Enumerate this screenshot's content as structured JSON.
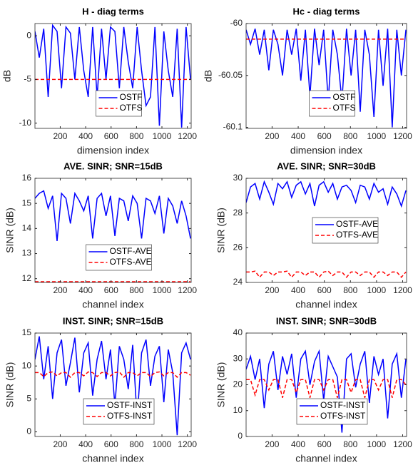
{
  "chart_data": [
    {
      "type": "line",
      "title": "H - diag terms",
      "xlabel": "dimension index",
      "ylabel": "dB",
      "x": [
        1,
        35,
        70,
        105,
        140,
        175,
        210,
        245,
        280,
        315,
        350,
        385,
        420,
        455,
        490,
        525,
        560,
        595,
        630,
        665,
        700,
        735,
        770,
        805,
        840,
        875,
        910,
        945,
        980,
        1015,
        1050,
        1085,
        1120,
        1155,
        1190,
        1225
      ],
      "xlim": [
        1,
        1230
      ],
      "xticks": [
        200,
        400,
        600,
        800,
        1000,
        1200
      ],
      "ylim": [
        -10.6,
        1.4
      ],
      "yticks": [
        -10,
        -5,
        0
      ],
      "legend": "south",
      "grid": false,
      "series": [
        {
          "name": "OSTF",
          "color": "#0000ff",
          "linestyle": "solid",
          "values": [
            0.5,
            -2.5,
            0.8,
            -7,
            1.2,
            0.5,
            -6,
            1,
            0.3,
            -5,
            1,
            -4,
            -7,
            1,
            -7,
            0.8,
            -5,
            1,
            0.5,
            -6,
            1,
            -3,
            -6,
            1,
            -4,
            -8,
            -7,
            1,
            -10.3,
            0.5,
            -4,
            -7,
            0.8,
            -10.5,
            1,
            -5
          ]
        },
        {
          "name": "OTFS",
          "color": "#ff0000",
          "linestyle": "dashed",
          "values": [
            -5,
            -5,
            -5,
            -5,
            -5,
            -5,
            -5,
            -5,
            -5,
            -5,
            -5,
            -5,
            -5,
            -5,
            -5,
            -5,
            -5,
            -5,
            -5,
            -5,
            -5,
            -5,
            -5,
            -5,
            -5,
            -5,
            -5,
            -5,
            -5,
            -5,
            -5,
            -5,
            -5,
            -5,
            -5,
            -5
          ]
        }
      ]
    },
    {
      "type": "line",
      "title": "Hc - diag terms",
      "xlabel": "dimension index",
      "ylabel": "dB",
      "x": [
        1,
        35,
        70,
        105,
        140,
        175,
        210,
        245,
        280,
        315,
        350,
        385,
        420,
        455,
        490,
        525,
        560,
        595,
        630,
        665,
        700,
        735,
        770,
        805,
        840,
        875,
        910,
        945,
        980,
        1015,
        1050,
        1085,
        1120,
        1155,
        1190,
        1225
      ],
      "xlim": [
        1,
        1230
      ],
      "xticks": [
        200,
        400,
        600,
        800,
        1000,
        1200
      ],
      "ylim": [
        -60.101,
        -60
      ],
      "yticks": [
        -60.1,
        -60.05,
        -60
      ],
      "legend": "south",
      "grid": false,
      "series": [
        {
          "name": "OSTF",
          "color": "#0000ff",
          "linestyle": "solid",
          "values": [
            -60.006,
            -60.02,
            -60.005,
            -60.03,
            -60.006,
            -60.045,
            -60.006,
            -60.02,
            -60.05,
            -60.006,
            -60.03,
            -60.005,
            -60.055,
            -60.006,
            -60.07,
            -60.005,
            -60.04,
            -60.006,
            -60.075,
            -60.006,
            -60.03,
            -60.075,
            -60.005,
            -60.05,
            -60.006,
            -60.085,
            -60.006,
            -60.03,
            -60.09,
            -60.006,
            -60.06,
            -60.005,
            -60.1,
            -60.006,
            -60.05,
            -60.006
          ]
        },
        {
          "name": "OTFS",
          "color": "#ff0000",
          "linestyle": "dashed",
          "values": [
            -60.015,
            -60.015,
            -60.015,
            -60.015,
            -60.015,
            -60.015,
            -60.015,
            -60.015,
            -60.015,
            -60.015,
            -60.015,
            -60.015,
            -60.015,
            -60.015,
            -60.015,
            -60.015,
            -60.015,
            -60.015,
            -60.015,
            -60.015,
            -60.015,
            -60.015,
            -60.015,
            -60.015,
            -60.015,
            -60.015,
            -60.015,
            -60.015,
            -60.015,
            -60.015,
            -60.015,
            -60.015,
            -60.015,
            -60.015,
            -60.015,
            -60.015
          ]
        }
      ]
    },
    {
      "type": "line",
      "title": "AVE. SINR; SNR=15dB",
      "xlabel": "channel index",
      "ylabel": "SINR (dB)",
      "x": [
        1,
        35,
        70,
        105,
        140,
        175,
        210,
        245,
        280,
        315,
        350,
        385,
        420,
        455,
        490,
        525,
        560,
        595,
        630,
        665,
        700,
        735,
        770,
        805,
        840,
        875,
        910,
        945,
        980,
        1015,
        1050,
        1085,
        1120,
        1155,
        1190,
        1225
      ],
      "xlim": [
        1,
        1230
      ],
      "xticks": [
        200,
        400,
        600,
        800,
        1000,
        1200
      ],
      "ylim": [
        11.85,
        16
      ],
      "yticks": [
        12,
        13,
        14,
        15,
        16
      ],
      "legend": "south",
      "grid": false,
      "series": [
        {
          "name": "OSTF-AVE",
          "color": "#0000ff",
          "linestyle": "solid",
          "values": [
            15.2,
            15.4,
            15.5,
            14.8,
            15.3,
            13.5,
            15.4,
            15.2,
            14.2,
            15.4,
            15.1,
            14.7,
            15.3,
            13.6,
            15.2,
            15.4,
            14.5,
            15.3,
            13.7,
            15.2,
            15.1,
            14.3,
            15.3,
            15,
            13.6,
            15.2,
            15.1,
            14.6,
            15.3,
            13.8,
            15.2,
            14.9,
            14.2,
            15.1,
            14.5,
            13.6
          ]
        },
        {
          "name": "OTFS-AVE",
          "color": "#ff0000",
          "linestyle": "dashed",
          "values": [
            11.88,
            11.88,
            11.88,
            11.88,
            11.88,
            11.88,
            11.88,
            11.88,
            11.88,
            11.88,
            11.88,
            11.88,
            11.88,
            11.88,
            11.88,
            11.88,
            11.88,
            11.88,
            11.88,
            11.88,
            11.88,
            11.88,
            11.88,
            11.88,
            11.88,
            11.88,
            11.88,
            11.88,
            11.88,
            11.88,
            11.88,
            11.88,
            11.88,
            11.88,
            11.88,
            11.88
          ]
        }
      ]
    },
    {
      "type": "line",
      "title": "AVE. SINR; SNR=30dB",
      "xlabel": "channel index",
      "ylabel": "SINR (dB)",
      "x": [
        1,
        35,
        70,
        105,
        140,
        175,
        210,
        245,
        280,
        315,
        350,
        385,
        420,
        455,
        490,
        525,
        560,
        595,
        630,
        665,
        700,
        735,
        770,
        805,
        840,
        875,
        910,
        945,
        980,
        1015,
        1050,
        1085,
        1120,
        1155,
        1190,
        1225
      ],
      "xlim": [
        1,
        1230
      ],
      "xticks": [
        200,
        400,
        600,
        800,
        1000,
        1200
      ],
      "ylim": [
        24,
        30
      ],
      "yticks": [
        24,
        26,
        28,
        30
      ],
      "legend": "east",
      "grid": false,
      "series": [
        {
          "name": "OSTF-AVE",
          "color": "#0000ff",
          "linestyle": "solid",
          "values": [
            28.6,
            29.5,
            29.7,
            28.8,
            29.8,
            29.2,
            28.5,
            29.7,
            29.4,
            29.8,
            28.9,
            29.6,
            29.8,
            29.1,
            29.7,
            28.4,
            29.6,
            29.8,
            29.2,
            29.7,
            28.8,
            29.5,
            29.6,
            29.3,
            28.6,
            29.6,
            29.5,
            28.8,
            29.7,
            29.2,
            29.4,
            28.5,
            29.5,
            29.1,
            28.4,
            29.3
          ]
        },
        {
          "name": "OTFS-AVE",
          "color": "#ff0000",
          "linestyle": "dashed",
          "values": [
            24.6,
            24.6,
            24.65,
            24.3,
            24.6,
            24.6,
            24.4,
            24.6,
            24.6,
            24.65,
            24.3,
            24.6,
            24.6,
            24.4,
            24.6,
            24.6,
            24.3,
            24.6,
            24.65,
            24.4,
            24.6,
            24.6,
            24.3,
            24.6,
            24.6,
            24.4,
            24.6,
            24.6,
            24.3,
            24.6,
            24.6,
            24.4,
            24.6,
            24.6,
            24.3,
            24.6
          ]
        }
      ]
    },
    {
      "type": "line",
      "title": "INST. SINR; SNR=15dB",
      "xlabel": "channel index",
      "ylabel": "SINR (dB)",
      "x": [
        1,
        35,
        70,
        105,
        140,
        175,
        210,
        245,
        280,
        315,
        350,
        385,
        420,
        455,
        490,
        525,
        560,
        595,
        630,
        665,
        700,
        735,
        770,
        805,
        840,
        875,
        910,
        945,
        980,
        1015,
        1050,
        1085,
        1120,
        1155,
        1190,
        1225
      ],
      "xlim": [
        1,
        1230
      ],
      "xticks": [
        200,
        400,
        600,
        800,
        1000,
        1200
      ],
      "ylim": [
        -0.7,
        15
      ],
      "yticks": [
        0,
        5,
        10,
        15
      ],
      "legend": "south",
      "grid": false,
      "series": [
        {
          "name": "OSTF-INST",
          "color": "#0000ff",
          "linestyle": "solid",
          "values": [
            11,
            14.5,
            8,
            13,
            5,
            12,
            14,
            7,
            10.5,
            14.3,
            6,
            12,
            13.5,
            5.5,
            11,
            13.8,
            8,
            12.5,
            4,
            13,
            11,
            6.5,
            13.2,
            2,
            12,
            14,
            7,
            11.5,
            13,
            4.5,
            12.5,
            9,
            -0.5,
            12,
            13.5,
            11
          ]
        },
        {
          "name": "OTFS-INST",
          "color": "#ff0000",
          "linestyle": "dashed",
          "values": [
            9,
            9,
            8.4,
            9,
            9.1,
            8.5,
            9,
            9,
            8.3,
            9,
            9,
            8.5,
            9.1,
            9,
            8.4,
            9,
            9,
            8.5,
            9,
            9.1,
            8.3,
            9,
            9,
            8.5,
            9,
            9,
            8.4,
            9,
            9.1,
            8.5,
            9,
            9,
            8.3,
            9,
            9,
            8.6
          ]
        }
      ]
    },
    {
      "type": "line",
      "title": "INST. SINR; SNR=30dB",
      "xlabel": "channel index",
      "ylabel": "SINR (dB)",
      "x": [
        1,
        35,
        70,
        105,
        140,
        175,
        210,
        245,
        280,
        315,
        350,
        385,
        420,
        455,
        490,
        525,
        560,
        595,
        630,
        665,
        700,
        735,
        770,
        805,
        840,
        875,
        910,
        945,
        980,
        1015,
        1050,
        1085,
        1120,
        1155,
        1190,
        1225
      ],
      "xlim": [
        1,
        1230
      ],
      "xticks": [
        200,
        400,
        600,
        800,
        1000,
        1200
      ],
      "ylim": [
        0,
        40
      ],
      "yticks": [
        0,
        10,
        20,
        30,
        40
      ],
      "legend": "south",
      "grid": false,
      "series": [
        {
          "name": "OSTF-INST",
          "color": "#0000ff",
          "linestyle": "solid",
          "values": [
            26,
            31,
            22,
            30,
            11,
            28,
            33,
            18,
            31,
            24,
            32,
            15,
            30,
            33,
            20,
            29,
            33,
            14,
            31,
            27,
            23,
            1.5,
            30,
            32,
            19,
            28,
            33,
            13,
            31,
            24,
            30,
            7,
            28,
            32,
            15,
            30
          ]
        },
        {
          "name": "OTFS-INST",
          "color": "#ff0000",
          "linestyle": "dashed",
          "values": [
            22,
            22,
            16,
            22,
            22,
            18,
            22,
            22,
            15,
            22,
            22,
            17,
            22,
            22,
            15,
            22,
            22,
            18,
            22,
            22,
            15,
            22,
            22,
            17,
            22,
            22,
            15,
            22,
            22,
            18,
            22,
            22,
            15,
            22,
            22,
            20
          ]
        }
      ]
    }
  ]
}
